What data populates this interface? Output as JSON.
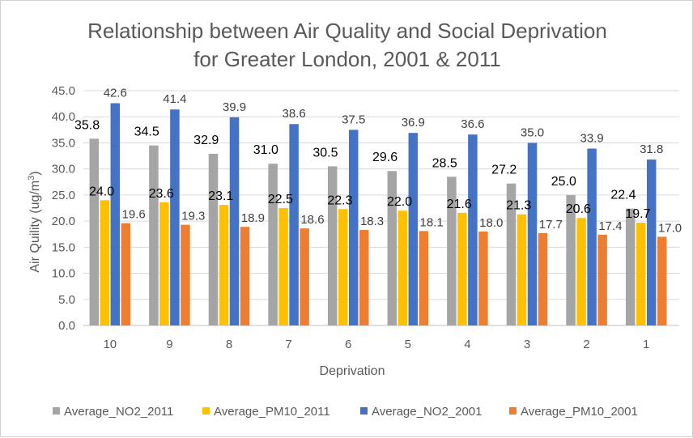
{
  "chart_data": {
    "type": "bar",
    "title_lines": [
      "Relationship between Air Quality and Social Deprivation",
      "for Greater London, 2001 & 2011"
    ],
    "xlabel": "Deprivation",
    "ylabel": "Air Quility (ug/m",
    "ylabel_superscript": "3",
    "ylabel_suffix": ")",
    "ylim": [
      0,
      45
    ],
    "yticks": [
      "0.0",
      "5.0",
      "10.0",
      "15.0",
      "20.0",
      "25.0",
      "30.0",
      "35.0",
      "40.0",
      "45.0"
    ],
    "ytick_values": [
      0,
      5,
      10,
      15,
      20,
      25,
      30,
      35,
      40,
      45
    ],
    "grid": true,
    "legend_position": "bottom",
    "categories": [
      "10",
      "9",
      "8",
      "7",
      "6",
      "5",
      "4",
      "3",
      "2",
      "1"
    ],
    "series": [
      {
        "name": "Average_NO2_2011",
        "color": "#a5a5a5",
        "values": [
          35.8,
          34.5,
          32.9,
          31.0,
          30.5,
          29.6,
          28.5,
          27.2,
          25.0,
          22.4
        ],
        "labels": [
          "35.8",
          "34.5",
          "32.9",
          "31.0",
          "30.5",
          "29.6",
          "28.5",
          "27.2",
          "25.0",
          "22.4"
        ]
      },
      {
        "name": "Average_PM10_2011",
        "color": "#ffc000",
        "values": [
          24.0,
          23.6,
          23.1,
          22.5,
          22.3,
          22.0,
          21.6,
          21.3,
          20.6,
          19.7
        ],
        "labels": [
          "24.0",
          "23.6",
          "23.1",
          "22.5",
          "22.3",
          "22.0",
          "21.6",
          "21.3",
          "20.6",
          "19.7"
        ]
      },
      {
        "name": "Average_NO2_2001",
        "color": "#4472c4",
        "values": [
          42.6,
          41.4,
          39.9,
          38.6,
          37.5,
          36.9,
          36.6,
          35.0,
          33.9,
          31.8
        ],
        "labels": [
          "42.6",
          "41.4",
          "39.9",
          "38.6",
          "37.5",
          "36.9",
          "36.6",
          "35.0",
          "33.9",
          "31.8"
        ]
      },
      {
        "name": "Average_PM10_2001",
        "color": "#ed7d31",
        "values": [
          19.6,
          19.3,
          18.9,
          18.6,
          18.3,
          18.1,
          18.0,
          17.7,
          17.4,
          17.0
        ],
        "labels": [
          "19.6",
          "19.3",
          "18.9",
          "18.6",
          "18.3",
          "18.1",
          "18.0",
          "17.7",
          "17.4",
          "17.0"
        ]
      }
    ]
  },
  "colors": {
    "gridline": "#d9d9d9",
    "axis_line": "#bfbfbf"
  }
}
